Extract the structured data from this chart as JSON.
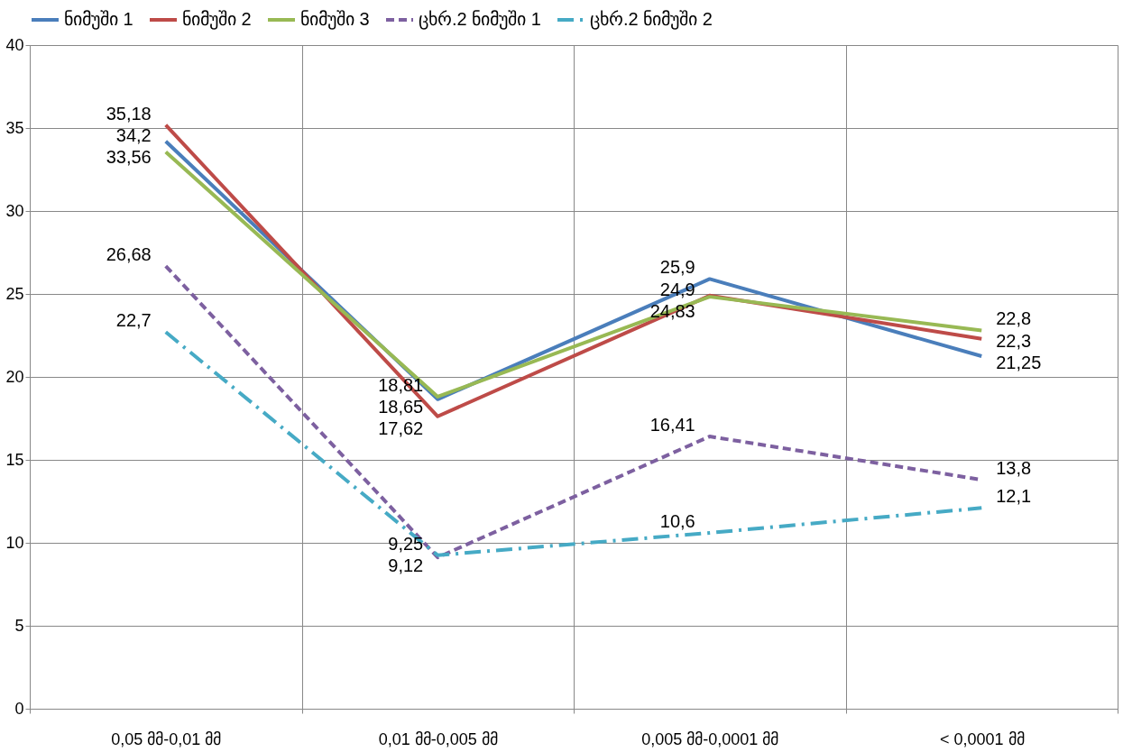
{
  "chart_data": {
    "type": "line",
    "categories": [
      "0,05 მმ-0,01 მმ",
      "0,01 მმ-0,005 მმ",
      "0,005 მმ-0,0001 მმ",
      "< 0,0001 მმ"
    ],
    "series": [
      {
        "name": "ნიმუში 1",
        "color": "#4a7ebb",
        "line_style": "solid",
        "values": [
          34.2,
          18.65,
          25.9,
          21.25
        ],
        "value_labels": [
          "34,2",
          "18,65",
          "25,9",
          "21,25"
        ]
      },
      {
        "name": "ნიმუში 2",
        "color": "#be4b48",
        "line_style": "solid",
        "values": [
          35.18,
          17.62,
          24.9,
          22.3
        ],
        "value_labels": [
          "35,18",
          "17,62",
          "24,9",
          "22,3"
        ]
      },
      {
        "name": "ნიმუში 3",
        "color": "#98b954",
        "line_style": "solid",
        "values": [
          33.56,
          18.81,
          24.83,
          22.8
        ],
        "value_labels": [
          "33,56",
          "18,81",
          "24,83",
          "22,8"
        ]
      },
      {
        "name": "ცხრ.2 ნიმუში 1",
        "color": "#7d60a0",
        "line_style": "dashed",
        "values": [
          26.68,
          9.12,
          16.41,
          13.8
        ],
        "value_labels": [
          "26,68",
          "9,12",
          "16,41",
          "13,8"
        ]
      },
      {
        "name": "ცხრ.2 ნიმუში 2",
        "color": "#46aac5",
        "line_style": "dashdot",
        "values": [
          22.7,
          9.25,
          10.6,
          12.1
        ],
        "value_labels": [
          "22,7",
          "9,25",
          "10,6",
          "12,1"
        ]
      }
    ],
    "ylim": [
      0,
      40
    ],
    "yticks": [
      0,
      5,
      10,
      15,
      20,
      25,
      30,
      35,
      40
    ],
    "grid": true,
    "legend": "top",
    "marker": "none"
  }
}
